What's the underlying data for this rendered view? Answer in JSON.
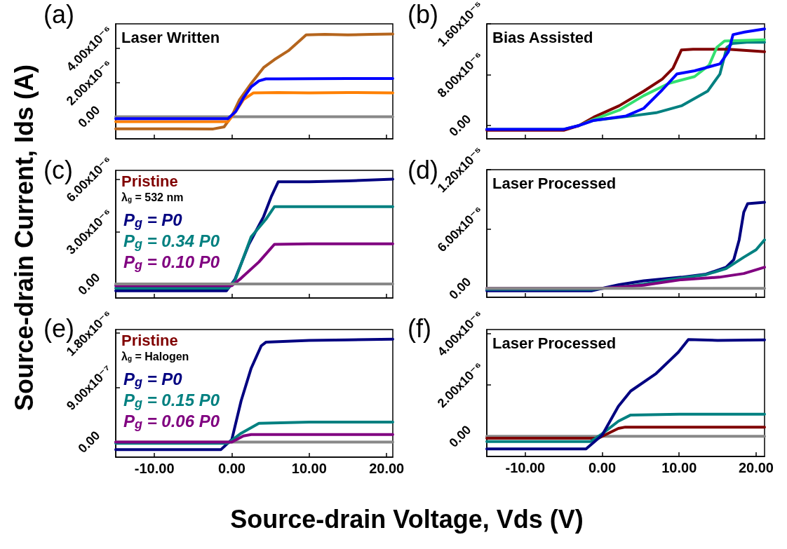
{
  "chart_data": [
    {
      "type": "line",
      "title": "(a)",
      "subtitle": "Laser Written",
      "xlim": [
        -15,
        20.8
      ],
      "xticks": [
        {
          "value": -10,
          "label": null
        },
        {
          "value": 0,
          "label": null
        },
        {
          "value": 10,
          "label": null
        },
        {
          "value": 20,
          "label": null
        }
      ],
      "ylim": [
        -1.3e-06,
        5.45e-06
      ],
      "yticks": [
        {
          "value": 0,
          "label": "0.00"
        },
        {
          "value": 2e-06,
          "label": "2.00x10⁻⁶"
        },
        {
          "value": 4e-06,
          "label": "4.00x10⁻⁶"
        }
      ],
      "tick_labels": "y",
      "grid": false,
      "legend": false,
      "series": [
        {
          "color": "#888888",
          "x": [
            -15,
            0,
            20.8
          ],
          "values": [
            0,
            0,
            0
          ]
        },
        {
          "color": "#b5651d",
          "x": [
            -15,
            -2.4,
            -1,
            0,
            1,
            2.5,
            4.1,
            5.5,
            7.3,
            9,
            9.6,
            12,
            15,
            18,
            20.8
          ],
          "values": [
            -7.1e-07,
            -7.2e-07,
            -6e-07,
            4e-08,
            1e-06,
            1.95e-06,
            2.88e-06,
            3.35e-06,
            3.87e-06,
            4.55e-06,
            4.8e-06,
            4.83e-06,
            4.8e-06,
            4.83e-06,
            4.85e-06
          ]
        },
        {
          "color": "#ff8000",
          "x": [
            -15,
            -0.5,
            0.5,
            1.5,
            2.8,
            6,
            10,
            15,
            20.8
          ],
          "values": [
            -2.9e-07,
            -2.9e-07,
            3e-07,
            1e-06,
            1.4e-06,
            1.42e-06,
            1.4e-06,
            1.42e-06,
            1.4e-06
          ]
        },
        {
          "color": "#0000ff",
          "x": [
            -15,
            -0.5,
            0.5,
            1.5,
            2.5,
            3.5,
            4.4,
            6,
            10,
            15,
            20.8
          ],
          "values": [
            -1.2e-07,
            -1.2e-07,
            3e-07,
            1.1e-06,
            1.75e-06,
            2.1e-06,
            2.22e-06,
            2.22e-06,
            2.23e-06,
            2.24e-06,
            2.24e-06
          ]
        }
      ]
    },
    {
      "type": "line",
      "title": "(b)",
      "subtitle": "Bias Assisted",
      "xlim": [
        -15,
        21.1
      ],
      "xticks": [
        {
          "value": -10,
          "label": null
        },
        {
          "value": 0,
          "label": null
        },
        {
          "value": 10,
          "label": null
        },
        {
          "value": 20,
          "label": null
        }
      ],
      "ylim": [
        -2.1e-06,
        1.6e-05
      ],
      "yticks": [
        {
          "value": 0,
          "label": "0.00"
        },
        {
          "value": 8e-06,
          "label": "8.00x10⁻⁶"
        },
        {
          "value": 1.6e-05,
          "label": "1.60x10⁻⁵"
        }
      ],
      "tick_labels": "y",
      "grid": false,
      "legend": false,
      "series": [
        {
          "color": "#008080",
          "x": [
            -15,
            -5.0,
            -3.0,
            -1.1,
            3.8,
            7.0,
            10.3,
            13.7,
            15.3,
            16.2,
            16.9,
            18.8,
            21.1
          ],
          "values": [
            -6e-07,
            -6e-07,
            0,
            8e-07,
            1.5e-06,
            2e-06,
            3.1e-06,
            5.4e-06,
            8.1e-06,
            1.23e-05,
            1.29e-05,
            1.31e-05,
            1.31e-05
          ]
        },
        {
          "color": "#800000",
          "x": [
            -15,
            -5.0,
            -3.0,
            -1.1,
            2.2,
            5.4,
            7.8,
            9.2,
            10.3,
            11.8,
            16.4,
            21.1
          ],
          "values": [
            -7.5e-07,
            -7.5e-07,
            0,
            1.3e-06,
            3.1e-06,
            5.4e-06,
            7.3e-06,
            9e-06,
            1.19e-05,
            1.2e-05,
            1.2e-05,
            1.16e-05
          ]
        },
        {
          "color": "#33e070",
          "x": [
            -3.0,
            -1.1,
            2.2,
            5.4,
            8.7,
            12.0,
            13.9,
            14.9,
            15.9,
            18.8,
            21.1
          ],
          "values": [
            0,
            9.6e-07,
            2.4e-06,
            4.7e-06,
            6.65e-06,
            7.7e-06,
            9.5e-06,
            1.23e-05,
            1.33e-05,
            1.34e-05,
            1.35e-05
          ]
        },
        {
          "color": "#0000ff",
          "x": [
            -15,
            -5.0,
            -3.0,
            -1.1,
            3.1,
            5.4,
            7.8,
            9.7,
            12.0,
            15.3,
            16.4,
            17.0,
            18.5,
            21.1
          ],
          "values": [
            -6e-07,
            -6e-07,
            0,
            8e-07,
            1.5e-06,
            2.7e-06,
            5.6e-06,
            8.1e-06,
            8.6e-06,
            9.7e-06,
            1.16e-05,
            1.43e-05,
            1.47e-05,
            1.52e-05
          ]
        }
      ]
    },
    {
      "type": "line",
      "title": "(c)",
      "ylabel": "Source-drain Current, Ids (A)",
      "legend_title": "Pristine",
      "annotations": [
        "λ$_{g}$ = 532 nm"
      ],
      "xlim": [
        -15,
        20.8
      ],
      "xticks": [
        {
          "value": -10,
          "label": null
        },
        {
          "value": 0,
          "label": null
        },
        {
          "value": 10,
          "label": null
        },
        {
          "value": 20,
          "label": null
        }
      ],
      "ylim": [
        -8e-07,
        6.5e-06
      ],
      "yticks": [
        {
          "value": 0,
          "label": "0.00"
        },
        {
          "value": 3e-06,
          "label": "3.00x10⁻⁶"
        },
        {
          "value": 6e-06,
          "label": "6.00x10⁻⁶"
        }
      ],
      "tick_labels": "y",
      "grid": false,
      "legend": "left",
      "series": [
        {
          "name": "P$_{g}$ = P0",
          "color": "#000080",
          "x": [
            -15,
            -0.7,
            0.4,
            2.2,
            4.1,
            5.1,
            6,
            10,
            15,
            20.8
          ],
          "values": [
            -3.9e-07,
            -3.9e-07,
            2.6e-07,
            2.27e-06,
            3.85e-06,
            5e-06,
            5.85e-06,
            5.85e-06,
            5.9e-06,
            6e-06
          ]
        },
        {
          "name": "P$_{g}$ = 0.34 P0",
          "color": "#008080",
          "x": [
            -15,
            -0.5,
            0.4,
            2.5,
            4.4,
            5.5,
            10,
            15,
            20.8
          ],
          "values": [
            -2.4e-07,
            -2.4e-07,
            1.9e-07,
            2.7e-06,
            3.7e-06,
            4.42e-06,
            4.42e-06,
            4.42e-06,
            4.42e-06
          ]
        },
        {
          "name": "P$_{g}$ = 0.10 P0",
          "color": "#800080",
          "x": [
            -15,
            0,
            1.2,
            3.5,
            5.5,
            10,
            15,
            20.8
          ],
          "values": [
            -1e-07,
            -1e-07,
            3.3e-07,
            1.26e-06,
            2.27e-06,
            2.3e-06,
            2.3e-06,
            2.3e-06
          ]
        },
        {
          "color": "#888888",
          "x": [
            -15,
            0,
            20.8
          ],
          "values": [
            0,
            0,
            0
          ]
        }
      ]
    },
    {
      "type": "line",
      "title": "(d)",
      "subtitle": "Laser Processed",
      "xlim": [
        -15,
        21.1
      ],
      "xticks": [
        {
          "value": -10,
          "label": null
        },
        {
          "value": 0,
          "label": null
        },
        {
          "value": 10,
          "label": null
        },
        {
          "value": 20,
          "label": null
        }
      ],
      "ylim": [
        -9e-07,
        1.2e-05
      ],
      "yticks": [
        {
          "value": 0,
          "label": "0.00"
        },
        {
          "value": 6e-06,
          "label": "6.00x10⁻⁶"
        },
        {
          "value": 1.2e-05,
          "label": "1.20x10⁻⁵"
        }
      ],
      "tick_labels": "y",
      "grid": false,
      "legend": false,
      "series": [
        {
          "color": "#000080",
          "x": [
            -15,
            -1.4,
            0,
            2.2,
            5.4,
            10.3,
            13.5,
            16.1,
            17.1,
            17.8,
            18.4,
            18.9,
            21.1
          ],
          "values": [
            -2.5e-07,
            -2.5e-07,
            0,
            3.8e-07,
            7.6e-07,
            1.13e-06,
            1.44e-06,
            2.14e-06,
            2.9e-06,
            4.9e-06,
            7.7e-06,
            8.56e-06,
            8.7e-06
          ]
        },
        {
          "color": "#008080",
          "x": [
            -15,
            -1.4,
            0,
            2.2,
            5.4,
            8.7,
            13.5,
            16.1,
            18.4,
            20,
            21.1
          ],
          "values": [
            -1e-07,
            -1e-07,
            0,
            1.3e-07,
            4.3e-07,
            8.8e-07,
            1.39e-06,
            2e-06,
            3.15e-06,
            3.9e-06,
            4.9e-06
          ]
        },
        {
          "color": "#800080",
          "x": [
            -15,
            0,
            5.4,
            10.3,
            15.2,
            18.4,
            21.1
          ],
          "values": [
            0,
            0,
            3.3e-07,
            8.8e-07,
            1.13e-06,
            1.5e-06,
            2.14e-06
          ]
        },
        {
          "color": "#888888",
          "x": [
            -15,
            0,
            21.1
          ],
          "values": [
            0,
            0,
            0
          ]
        }
      ]
    },
    {
      "type": "line",
      "title": "(e)",
      "xlabel": "Source-drain Voltage, Vds (V)",
      "legend_title": "Pristine",
      "annotations": [
        "λ$_{g}$ = Halogen"
      ],
      "xlim": [
        -15,
        20.8
      ],
      "xticks": [
        {
          "value": -10,
          "label": "-10.00"
        },
        {
          "value": 0,
          "label": "0.00"
        },
        {
          "value": 10,
          "label": "10.00"
        },
        {
          "value": 20,
          "label": "20.00"
        }
      ],
      "ylim": [
        -2.5e-07,
        1.86e-06
      ],
      "yticks": [
        {
          "value": 0,
          "label": "0.00"
        },
        {
          "value": 9e-07,
          "label": "9.00x10⁻⁷"
        },
        {
          "value": 1.8e-06,
          "label": "1.80x10⁻⁶"
        }
      ],
      "grid": false,
      "legend": "left",
      "series": [
        {
          "color": "#888888",
          "x": [
            -15,
            0,
            20.8
          ],
          "values": [
            0,
            0,
            0
          ]
        },
        {
          "name": "P$_{g}$ = P0",
          "color": "#000080",
          "x": [
            -15,
            -1.4,
            0,
            1.2,
            2.5,
            3.8,
            4.4,
            10,
            15,
            20.8
          ],
          "values": [
            -1.24e-07,
            -1.24e-07,
            4.1e-08,
            6.8e-07,
            1.22e-06,
            1.59e-06,
            1.65e-06,
            1.68e-06,
            1.69e-06,
            1.7e-06
          ]
        },
        {
          "name": "P$_{g}$ = 0.15 P0",
          "color": "#008080",
          "x": [
            -15,
            -0.5,
            1.2,
            3.5,
            10,
            20.8
          ],
          "values": [
            -2e-08,
            -2e-08,
            1.45e-07,
            3.1e-07,
            3.3e-07,
            3.3e-07
          ]
        },
        {
          "name": "P$_{g}$ = 0.06 P0",
          "color": "#800080",
          "x": [
            -15,
            0,
            1.5,
            2.5,
            10,
            20.8
          ],
          "values": [
            0,
            0,
            1e-07,
            1.24e-07,
            1.24e-07,
            1.24e-07
          ]
        }
      ]
    },
    {
      "type": "line",
      "title": "(f)",
      "subtitle": "Laser Processed",
      "xlim": [
        -15,
        21.1
      ],
      "xticks": [
        {
          "value": -10,
          "label": "-10.00"
        },
        {
          "value": 0,
          "label": "0.00"
        },
        {
          "value": 10,
          "label": "10.00"
        },
        {
          "value": 20,
          "label": "20.00"
        }
      ],
      "ylim": [
        -7.8e-07,
        4.15e-06
      ],
      "yticks": [
        {
          "value": 0,
          "label": "0.00"
        },
        {
          "value": 2e-06,
          "label": "2.00x10⁻⁶"
        },
        {
          "value": 4e-06,
          "label": "4.00x10⁻⁶"
        }
      ],
      "grid": false,
      "legend": false,
      "series": [
        {
          "color": "#888888",
          "x": [
            -15,
            0,
            21.1
          ],
          "values": [
            0,
            0,
            0
          ]
        },
        {
          "color": "#800000",
          "x": [
            -15,
            -0.5,
            2.1,
            3,
            10,
            21.1
          ],
          "values": [
            -7e-08,
            -7e-08,
            3.1e-07,
            3.6e-07,
            3.6e-07,
            3.6e-07
          ]
        },
        {
          "color": "#008080",
          "x": [
            -15,
            -1.5,
            0,
            2.1,
            3.7,
            10,
            21.1
          ],
          "values": [
            -2e-07,
            -2e-07,
            1e-07,
            5.9e-07,
            8.3e-07,
            8.6e-07,
            8.6e-07
          ]
        },
        {
          "color": "#000080",
          "x": [
            -15,
            -2.1,
            0,
            2.1,
            3.7,
            7,
            9.9,
            11.2,
            15,
            21.1
          ],
          "values": [
            -4.9e-07,
            -4.9e-07,
            5e-08,
            1.17e-06,
            1.76e-06,
            2.44e-06,
            3.27e-06,
            3.76e-06,
            3.73e-06,
            3.75e-06
          ]
        }
      ]
    }
  ]
}
